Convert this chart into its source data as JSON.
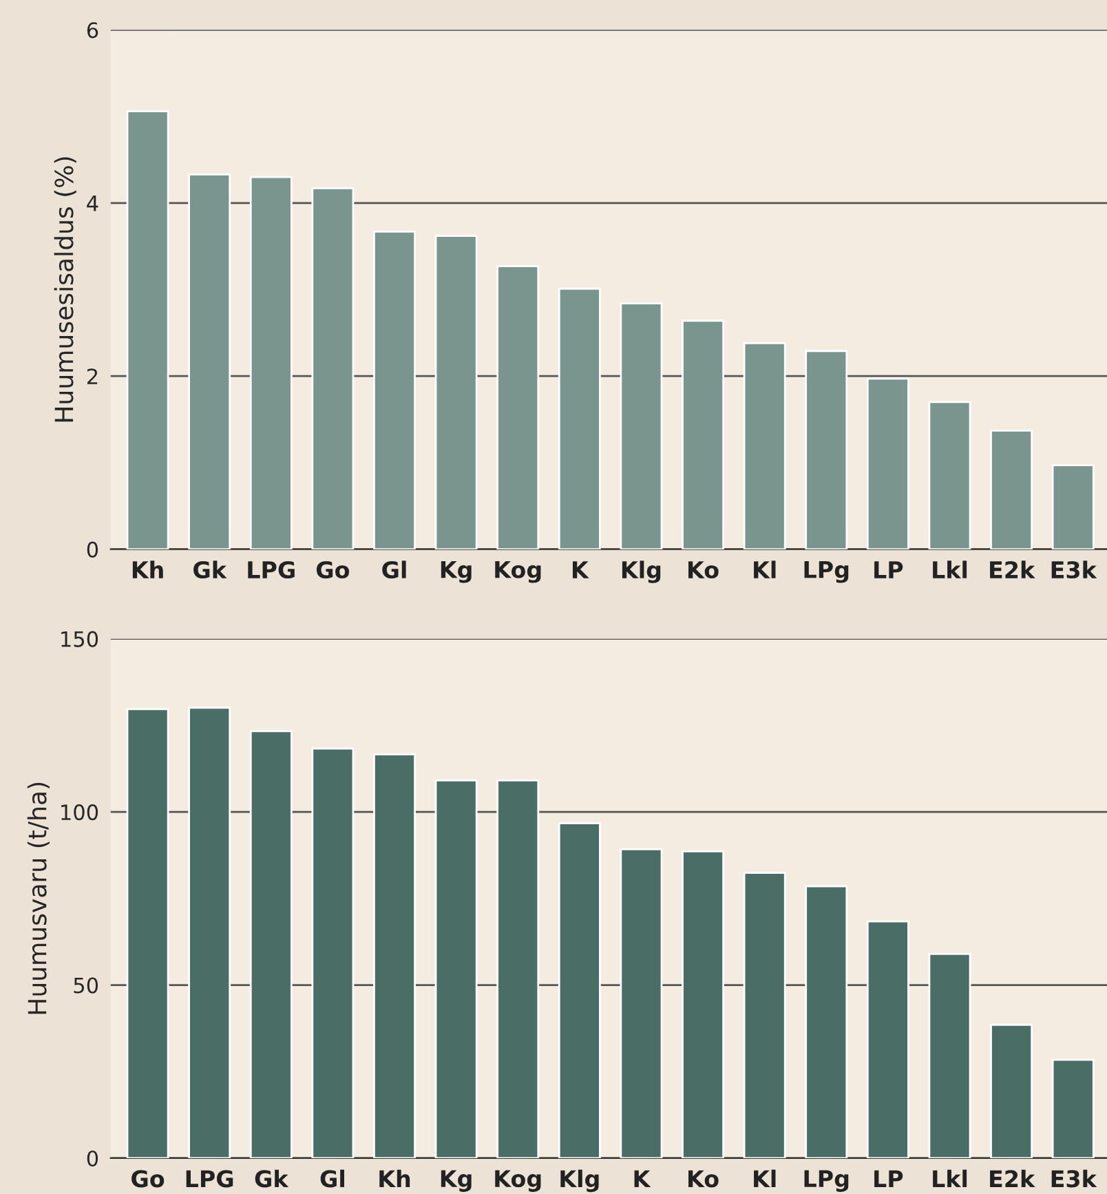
{
  "chart_data": [
    {
      "type": "bar",
      "ylabel": "Huumusesisaldus (%)",
      "categories": [
        "Kh",
        "Gk",
        "LPG",
        "Go",
        "Gl",
        "Kg",
        "Kog",
        "K",
        "Klg",
        "Ko",
        "Kl",
        "LPg",
        "LP",
        "Lkl",
        "E2k",
        "E3k"
      ],
      "values": [
        5.06,
        4.33,
        4.3,
        4.17,
        3.67,
        3.62,
        3.27,
        3.01,
        2.84,
        2.64,
        2.38,
        2.29,
        1.97,
        1.7,
        1.37,
        0.97
      ],
      "color": "#7a958d",
      "ylim": [
        0,
        6
      ],
      "yticks": [
        0,
        2,
        4,
        6
      ],
      "grid": "y"
    },
    {
      "type": "bar",
      "ylabel": "Huumusvaru (t/ha)",
      "categories": [
        "Go",
        "LPG",
        "Gk",
        "Gl",
        "Kh",
        "Kg",
        "Kog",
        "Klg",
        "K",
        "Ko",
        "Kl",
        "LPg",
        "LP",
        "Lkl",
        "E2k",
        "E3k"
      ],
      "values": [
        129.7,
        130.1,
        123.3,
        118.3,
        116.6,
        109.1,
        109.1,
        96.7,
        89.2,
        88.6,
        82.4,
        78.5,
        68.4,
        59.0,
        38.5,
        28.4
      ],
      "color": "#4a6e66",
      "ylim": [
        0,
        150
      ],
      "yticks": [
        0,
        50,
        100,
        150
      ],
      "grid": "y"
    }
  ]
}
